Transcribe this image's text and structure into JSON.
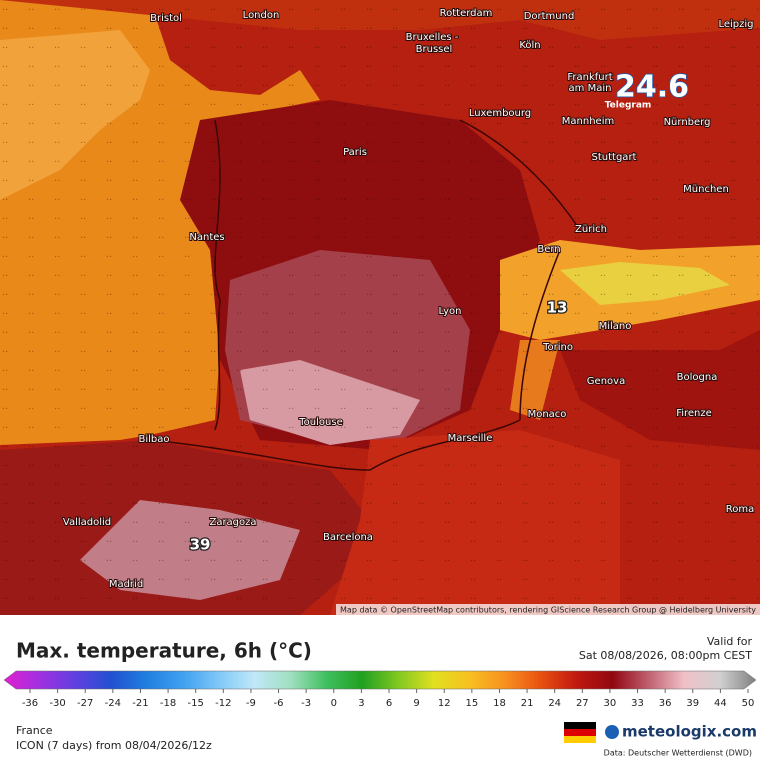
{
  "map": {
    "cities": [
      "Bristol",
      "London",
      "Rotterdam",
      "Dortmund",
      "Leipzig",
      "Bruxelles -",
      "Brussel",
      "Köln",
      "Frankfurt",
      "am Main",
      "Luxembourg",
      "Mannheim",
      "Nürnberg",
      "Paris",
      "Stuttgart",
      "München",
      "Nantes",
      "Zürich",
      "Bern",
      "Lyon",
      "Milano",
      "Torino",
      "Genova",
      "Bologna",
      "Monaco",
      "Firenze",
      "Toulouse",
      "Marseille",
      "Bilbao",
      "Valladolid",
      "Zaragoza",
      "Barcelona",
      "Roma",
      "Madrid"
    ],
    "highlights": [
      "39",
      "13"
    ],
    "attribution": "Map data © OpenStreetMap contributors, rendering GIScience Research Group @ Heidelberg University",
    "watermark": "24.6",
    "watermark_sub": "Telegram"
  },
  "header": {
    "title": "Max. temperature, 6h (°C)",
    "valid_label": "Valid for",
    "valid_time": "Sat 08/08/2026, 08:00pm CEST"
  },
  "colorbar": {
    "ticks": [
      -36,
      -30,
      -27,
      -24,
      -21,
      -18,
      -15,
      -12,
      -9,
      -6,
      -3,
      0,
      3,
      6,
      9,
      12,
      15,
      18,
      21,
      24,
      27,
      30,
      33,
      36,
      39,
      44,
      50
    ],
    "colors": [
      "#e020d0",
      "#a030e0",
      "#6040e0",
      "#2050d0",
      "#2080e0",
      "#40a0f0",
      "#80c8f8",
      "#c0e8f8",
      "#a0e0c0",
      "#40c060",
      "#20a020",
      "#80c820",
      "#e0e020",
      "#f8c020",
      "#f89020",
      "#e85010",
      "#c01810",
      "#900810",
      "#c06070",
      "#f0c0c8",
      "#d0d0d0",
      "#808080"
    ]
  },
  "footer": {
    "region": "France",
    "model": "ICON (7 days)  from  08/04/2026/12z",
    "brand": "meteologix.com",
    "source": "Data: Deutscher Wetterdienst (DWD)"
  }
}
